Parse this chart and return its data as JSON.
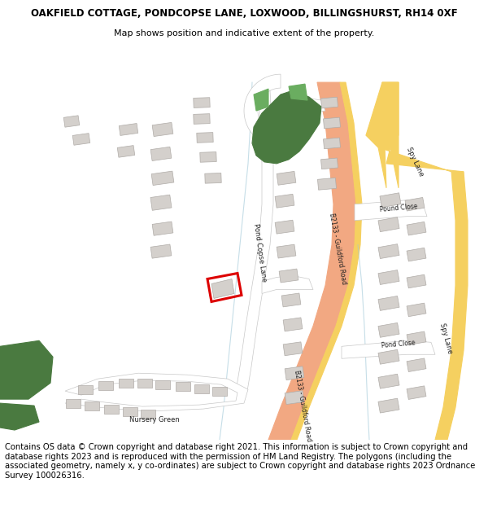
{
  "title_line1": "OAKFIELD COTTAGE, PONDCOPSE LANE, LOXWOOD, BILLINGSHURST, RH14 0XF",
  "title_line2": "Map shows position and indicative extent of the property.",
  "footer_text": "Contains OS data © Crown copyright and database right 2021. This information is subject to Crown copyright and database rights 2023 and is reproduced with the permission of HM Land Registry. The polygons (including the associated geometry, namely x, y co-ordinates) are subject to Crown copyright and database rights 2023 Ordnance Survey 100026316.",
  "bg_color": "#ffffff",
  "map_bg": "#ffffff",
  "road_main_color": "#f2a882",
  "building_color": "#d4d0cc",
  "building_edge": "#b0aca8",
  "green_dark": "#4a7a40",
  "green_light": "#7ab870",
  "highlight_color": "#dd0000",
  "yellow_road": "#f5d060",
  "road_white": "#ffffff",
  "road_line_color": "#c8c8c8",
  "water_line": "#a0c8d8",
  "title_fontsize": 8.5,
  "subtitle_fontsize": 8.0,
  "footer_fontsize": 7.2,
  "label_fontsize": 6.0
}
